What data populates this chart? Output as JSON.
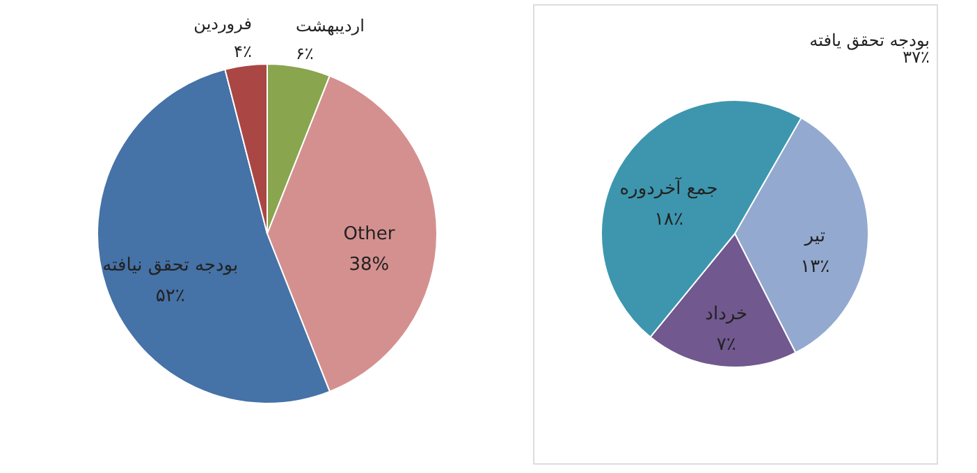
{
  "chart_data": [
    {
      "type": "pie",
      "categories": [
        "اردیبهشت",
        "Other",
        "بودجه تحقق نیافته",
        "فروردین"
      ],
      "values": [
        6,
        38,
        52,
        4
      ],
      "colors": [
        "#89a54e",
        "#d4908f",
        "#4572a7",
        "#aa4643"
      ],
      "value_labels": [
        "۶٪",
        "38%",
        "۵۲٪",
        "۴٪"
      ]
    },
    {
      "type": "pie",
      "categories": [
        "تیر",
        "خرداد",
        "جمع آخردوره"
      ],
      "values": [
        13,
        7,
        18
      ],
      "colors": [
        "#93a9cf",
        "#71588f",
        "#3d96ae"
      ],
      "value_labels": [
        "۱۳٪",
        "۷٪",
        "۱۸٪"
      ],
      "annotations": [
        "بودجه تحقق یافته",
        "۳۷٪"
      ]
    }
  ]
}
